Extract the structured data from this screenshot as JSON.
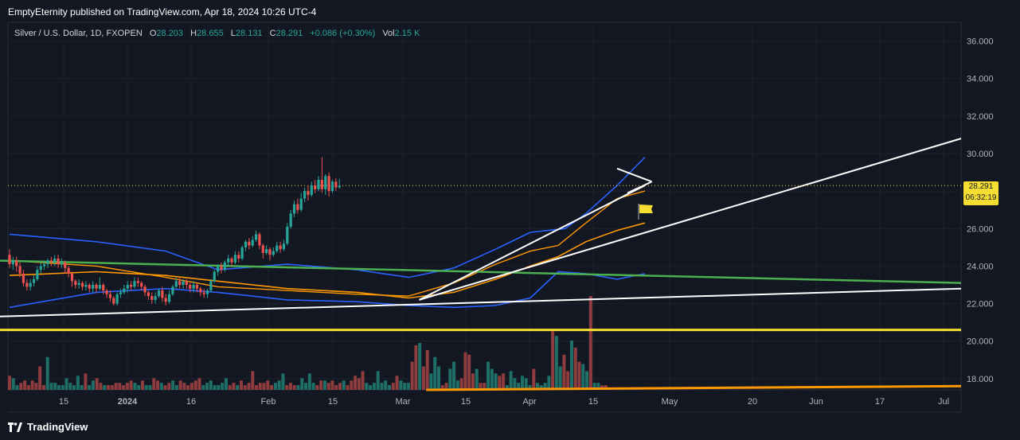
{
  "header": {
    "publisher": "EmptyEternity published on TradingView.com, Apr 18, 2024 10:26 UTC-4"
  },
  "legend": {
    "symbol": "Silver / U.S. Dollar, 1D, FXOPEN",
    "open_label": "O",
    "open": "28.203",
    "high_label": "H",
    "high": "28.655",
    "low_label": "L",
    "low": "28.131",
    "close_label": "C",
    "close": "28.291",
    "change": "+0.086 (+0.30%)",
    "vol_label": "Vol",
    "vol": "2.15 K"
  },
  "price_badge": {
    "price": "28.291",
    "countdown": "06:32:19"
  },
  "footer": {
    "brand": "TradingView"
  },
  "colors": {
    "background": "#131722",
    "up": "#26a69a",
    "down": "#ef5350",
    "up_volume": "#1e6f67",
    "down_volume": "#8e3c3e",
    "bb": "#2962ff",
    "ema": "#ff9800",
    "green_trend": "#4caf50",
    "yellow_support": "#f5dd32",
    "white_line": "#ffffff"
  },
  "chart_data": {
    "type": "candlestick",
    "y_axis": {
      "ticks": [
        "36.000",
        "34.000",
        "32.000",
        "30.000",
        "28.000",
        "26.000",
        "24.000",
        "22.000",
        "20.000",
        "18.000"
      ],
      "range": [
        17.4,
        37.0
      ]
    },
    "x_axis": {
      "tick_labels": [
        "15",
        "2024",
        "16",
        "Feb",
        "15",
        "Mar",
        "15",
        "Apr",
        "15",
        "May",
        "20",
        "Jun",
        "17",
        "Jul"
      ]
    },
    "candles": [
      {
        "o": 24.6,
        "c": 24.1,
        "h": 24.9,
        "l": 23.9
      },
      {
        "o": 24.1,
        "c": 24.3,
        "h": 24.5,
        "l": 23.8
      },
      {
        "o": 24.3,
        "c": 24.0,
        "h": 24.5,
        "l": 23.7
      },
      {
        "o": 24.0,
        "c": 23.6,
        "h": 24.2,
        "l": 23.4
      },
      {
        "o": 23.6,
        "c": 23.1,
        "h": 23.8,
        "l": 22.9
      },
      {
        "o": 23.1,
        "c": 22.9,
        "h": 23.3,
        "l": 22.7
      },
      {
        "o": 22.9,
        "c": 23.1,
        "h": 23.3,
        "l": 22.7
      },
      {
        "o": 23.1,
        "c": 23.3,
        "h": 23.5,
        "l": 22.9
      },
      {
        "o": 23.3,
        "c": 23.8,
        "h": 24.0,
        "l": 23.2
      },
      {
        "o": 23.8,
        "c": 24.0,
        "h": 24.2,
        "l": 23.6
      },
      {
        "o": 24.0,
        "c": 24.1,
        "h": 24.3,
        "l": 23.8
      },
      {
        "o": 24.1,
        "c": 24.3,
        "h": 24.4,
        "l": 23.9
      },
      {
        "o": 24.3,
        "c": 24.2,
        "h": 24.5,
        "l": 24.0
      },
      {
        "o": 24.2,
        "c": 24.4,
        "h": 24.6,
        "l": 24.0
      },
      {
        "o": 24.4,
        "c": 24.1,
        "h": 24.6,
        "l": 23.9
      },
      {
        "o": 24.1,
        "c": 24.2,
        "h": 24.4,
        "l": 23.9
      },
      {
        "o": 24.2,
        "c": 23.9,
        "h": 24.3,
        "l": 23.6
      },
      {
        "o": 23.9,
        "c": 23.6,
        "h": 24.0,
        "l": 23.4
      },
      {
        "o": 23.6,
        "c": 23.2,
        "h": 23.7,
        "l": 22.9
      },
      {
        "o": 23.2,
        "c": 23.0,
        "h": 23.3,
        "l": 22.8
      },
      {
        "o": 23.0,
        "c": 23.1,
        "h": 23.3,
        "l": 22.8
      },
      {
        "o": 23.1,
        "c": 22.9,
        "h": 23.2,
        "l": 22.7
      },
      {
        "o": 22.9,
        "c": 23.0,
        "h": 23.2,
        "l": 22.7
      },
      {
        "o": 23.0,
        "c": 22.8,
        "h": 23.1,
        "l": 22.6
      },
      {
        "o": 22.8,
        "c": 23.0,
        "h": 23.2,
        "l": 22.6
      },
      {
        "o": 23.0,
        "c": 22.8,
        "h": 23.1,
        "l": 22.6
      },
      {
        "o": 22.8,
        "c": 23.0,
        "h": 23.4,
        "l": 22.7
      },
      {
        "o": 23.0,
        "c": 22.7,
        "h": 23.1,
        "l": 22.5
      },
      {
        "o": 22.7,
        "c": 22.5,
        "h": 22.8,
        "l": 22.3
      },
      {
        "o": 22.5,
        "c": 22.3,
        "h": 22.7,
        "l": 22.1
      },
      {
        "o": 22.3,
        "c": 22.0,
        "h": 22.4,
        "l": 21.9
      },
      {
        "o": 22.0,
        "c": 22.5,
        "h": 22.6,
        "l": 21.9
      },
      {
        "o": 22.5,
        "c": 22.6,
        "h": 22.8,
        "l": 22.3
      },
      {
        "o": 22.6,
        "c": 22.8,
        "h": 23.0,
        "l": 22.5
      },
      {
        "o": 22.8,
        "c": 23.0,
        "h": 23.2,
        "l": 22.6
      },
      {
        "o": 23.0,
        "c": 22.9,
        "h": 23.2,
        "l": 22.7
      },
      {
        "o": 22.9,
        "c": 23.2,
        "h": 23.4,
        "l": 22.8
      },
      {
        "o": 23.2,
        "c": 23.1,
        "h": 23.4,
        "l": 22.9
      },
      {
        "o": 23.1,
        "c": 22.9,
        "h": 23.2,
        "l": 22.7
      },
      {
        "o": 22.9,
        "c": 22.6,
        "h": 23.0,
        "l": 22.4
      },
      {
        "o": 22.6,
        "c": 22.4,
        "h": 22.7,
        "l": 22.2
      },
      {
        "o": 22.4,
        "c": 22.2,
        "h": 22.6,
        "l": 22.0
      },
      {
        "o": 22.2,
        "c": 22.4,
        "h": 22.6,
        "l": 22.0
      },
      {
        "o": 22.4,
        "c": 22.7,
        "h": 22.8,
        "l": 22.3
      },
      {
        "o": 22.7,
        "c": 22.3,
        "h": 22.9,
        "l": 22.1
      },
      {
        "o": 22.3,
        "c": 22.1,
        "h": 22.5,
        "l": 21.9
      },
      {
        "o": 22.1,
        "c": 22.5,
        "h": 22.7,
        "l": 22.0
      },
      {
        "o": 22.5,
        "c": 22.9,
        "h": 23.0,
        "l": 22.4
      },
      {
        "o": 22.9,
        "c": 23.2,
        "h": 23.4,
        "l": 22.8
      },
      {
        "o": 23.2,
        "c": 23.0,
        "h": 23.4,
        "l": 22.8
      },
      {
        "o": 23.0,
        "c": 23.2,
        "h": 23.3,
        "l": 22.8
      },
      {
        "o": 23.2,
        "c": 23.0,
        "h": 23.3,
        "l": 22.8
      },
      {
        "o": 23.0,
        "c": 22.8,
        "h": 23.1,
        "l": 22.6
      },
      {
        "o": 22.8,
        "c": 23.0,
        "h": 23.2,
        "l": 22.6
      },
      {
        "o": 23.0,
        "c": 22.8,
        "h": 23.1,
        "l": 22.6
      },
      {
        "o": 22.8,
        "c": 22.6,
        "h": 22.9,
        "l": 22.4
      },
      {
        "o": 22.6,
        "c": 22.5,
        "h": 22.8,
        "l": 22.3
      },
      {
        "o": 22.5,
        "c": 22.7,
        "h": 22.8,
        "l": 22.3
      },
      {
        "o": 22.7,
        "c": 23.2,
        "h": 23.3,
        "l": 22.6
      },
      {
        "o": 23.2,
        "c": 23.7,
        "h": 23.8,
        "l": 23.1
      },
      {
        "o": 23.7,
        "c": 24.0,
        "h": 24.1,
        "l": 23.5
      },
      {
        "o": 24.0,
        "c": 23.8,
        "h": 24.2,
        "l": 23.6
      },
      {
        "o": 23.8,
        "c": 24.2,
        "h": 24.3,
        "l": 23.7
      },
      {
        "o": 24.2,
        "c": 24.4,
        "h": 24.6,
        "l": 24.0
      },
      {
        "o": 24.4,
        "c": 24.2,
        "h": 24.5,
        "l": 24.0
      },
      {
        "o": 24.2,
        "c": 24.6,
        "h": 24.8,
        "l": 24.1
      },
      {
        "o": 24.6,
        "c": 24.4,
        "h": 24.8,
        "l": 24.2
      },
      {
        "o": 24.4,
        "c": 25.0,
        "h": 25.1,
        "l": 24.3
      },
      {
        "o": 25.0,
        "c": 25.3,
        "h": 25.4,
        "l": 24.8
      },
      {
        "o": 25.3,
        "c": 25.1,
        "h": 25.5,
        "l": 24.9
      },
      {
        "o": 25.1,
        "c": 25.4,
        "h": 25.6,
        "l": 25.0
      },
      {
        "o": 25.4,
        "c": 25.7,
        "h": 25.9,
        "l": 25.3
      },
      {
        "o": 25.7,
        "c": 25.1,
        "h": 25.8,
        "l": 24.9
      },
      {
        "o": 25.1,
        "c": 24.7,
        "h": 25.2,
        "l": 24.4
      },
      {
        "o": 24.7,
        "c": 24.9,
        "h": 25.1,
        "l": 24.6
      },
      {
        "o": 24.9,
        "c": 24.6,
        "h": 25.0,
        "l": 24.3
      },
      {
        "o": 24.6,
        "c": 24.8,
        "h": 25.0,
        "l": 24.5
      },
      {
        "o": 24.8,
        "c": 25.1,
        "h": 25.3,
        "l": 24.7
      },
      {
        "o": 25.1,
        "c": 24.9,
        "h": 25.3,
        "l": 24.7
      },
      {
        "o": 24.9,
        "c": 25.2,
        "h": 25.4,
        "l": 24.8
      },
      {
        "o": 25.2,
        "c": 26.1,
        "h": 26.3,
        "l": 25.1
      },
      {
        "o": 26.1,
        "c": 26.8,
        "h": 27.0,
        "l": 26.0
      },
      {
        "o": 26.8,
        "c": 27.3,
        "h": 27.5,
        "l": 26.6
      },
      {
        "o": 27.3,
        "c": 27.0,
        "h": 27.6,
        "l": 26.8
      },
      {
        "o": 27.0,
        "c": 27.6,
        "h": 27.9,
        "l": 26.9
      },
      {
        "o": 27.6,
        "c": 28.0,
        "h": 28.2,
        "l": 27.4
      },
      {
        "o": 28.0,
        "c": 27.8,
        "h": 28.3,
        "l": 27.5
      },
      {
        "o": 27.8,
        "c": 28.3,
        "h": 28.5,
        "l": 27.7
      },
      {
        "o": 28.3,
        "c": 28.1,
        "h": 28.6,
        "l": 27.9
      },
      {
        "o": 28.1,
        "c": 28.6,
        "h": 28.8,
        "l": 28.0
      },
      {
        "o": 28.6,
        "c": 28.1,
        "h": 29.8,
        "l": 27.9
      },
      {
        "o": 28.1,
        "c": 28.8,
        "h": 28.9,
        "l": 27.8
      },
      {
        "o": 28.8,
        "c": 28.0,
        "h": 29.0,
        "l": 27.7
      },
      {
        "o": 28.0,
        "c": 28.5,
        "h": 28.6,
        "l": 27.9
      },
      {
        "o": 28.5,
        "c": 28.2,
        "h": 28.7,
        "l": 28.0
      },
      {
        "o": 28.203,
        "c": 28.291,
        "h": 28.655,
        "l": 28.131
      }
    ],
    "volumes": [
      6,
      5,
      2,
      3,
      4,
      2,
      4,
      3,
      10,
      2,
      14,
      3,
      3,
      2,
      2,
      5,
      3,
      2,
      6,
      2,
      7,
      2,
      4,
      5,
      3,
      2,
      2,
      2,
      3,
      3,
      2,
      3,
      4,
      3,
      2,
      4,
      2,
      2,
      5,
      4,
      3,
      2,
      3,
      4,
      2,
      4,
      3,
      2,
      3,
      4,
      5,
      2,
      3,
      4,
      2,
      2,
      3,
      5,
      2,
      3,
      2,
      4,
      2,
      3,
      8,
      2,
      3,
      3,
      4,
      2,
      3,
      4,
      7,
      2,
      3,
      2,
      2,
      5,
      3,
      7,
      3,
      2,
      4,
      4,
      3,
      4,
      2,
      3,
      4,
      2,
      4,
      6,
      5,
      8,
      3,
      2,
      3,
      8,
      3,
      4,
      2,
      3,
      6,
      4,
      3,
      3,
      12,
      19,
      20,
      10,
      17,
      7,
      14,
      10,
      2,
      3,
      9,
      12,
      4,
      5,
      16,
      15,
      7,
      9,
      3,
      3,
      12,
      9,
      7,
      6,
      7,
      2,
      8,
      5,
      3,
      6,
      5,
      2,
      9,
      3,
      2,
      3,
      6,
      25,
      23,
      10,
      15,
      8,
      21,
      18,
      12,
      11,
      8,
      40,
      3,
      3,
      2,
      2,
      1
    ],
    "bands": {
      "bb_upper": [
        [
          0,
          25.7
        ],
        [
          25,
          25.3
        ],
        [
          45,
          24.8
        ],
        [
          60,
          23.8
        ],
        [
          80,
          24.1
        ],
        [
          100,
          23.8
        ],
        [
          115,
          23.4
        ],
        [
          128,
          23.9
        ],
        [
          140,
          24.9
        ],
        [
          150,
          25.8
        ],
        [
          160,
          26.0
        ],
        [
          166,
          26.8
        ],
        [
          175,
          28.3
        ],
        [
          183,
          29.8
        ]
      ],
      "bb_lower": [
        [
          0,
          21.8
        ],
        [
          25,
          22.6
        ],
        [
          45,
          22.8
        ],
        [
          60,
          22.6
        ],
        [
          80,
          22.2
        ],
        [
          100,
          22.1
        ],
        [
          115,
          21.9
        ],
        [
          128,
          21.8
        ],
        [
          140,
          21.9
        ],
        [
          150,
          22.3
        ],
        [
          158,
          23.7
        ],
        [
          166,
          23.6
        ],
        [
          175,
          23.3
        ],
        [
          183,
          23.6
        ]
      ],
      "ema_short": [
        [
          0,
          24.3
        ],
        [
          25,
          24.0
        ],
        [
          45,
          23.4
        ],
        [
          60,
          22.9
        ],
        [
          80,
          22.7
        ],
        [
          100,
          22.5
        ],
        [
          115,
          22.4
        ],
        [
          128,
          23.1
        ],
        [
          140,
          24.1
        ],
        [
          150,
          24.8
        ],
        [
          158,
          25.1
        ],
        [
          166,
          26.3
        ],
        [
          175,
          27.6
        ],
        [
          183,
          28.0
        ]
      ],
      "ema_long": [
        [
          0,
          23.5
        ],
        [
          25,
          23.7
        ],
        [
          45,
          23.5
        ],
        [
          60,
          23.2
        ],
        [
          80,
          22.8
        ],
        [
          100,
          22.6
        ],
        [
          115,
          22.3
        ],
        [
          128,
          22.6
        ],
        [
          140,
          23.3
        ],
        [
          150,
          24.0
        ],
        [
          158,
          24.5
        ],
        [
          166,
          25.3
        ],
        [
          175,
          25.9
        ],
        [
          183,
          26.3
        ]
      ]
    },
    "trendlines": [
      {
        "name": "lower-white",
        "from": [
          -5,
          21.3
        ],
        "to": [
          290,
          22.8
        ],
        "color": "white"
      },
      {
        "name": "green-desc",
        "from": [
          -5,
          24.3
        ],
        "to": [
          290,
          23.1
        ],
        "color": "green"
      },
      {
        "name": "rising-white",
        "from": [
          118,
          22.2
        ],
        "to": [
          290,
          30.8
        ],
        "color": "white"
      },
      {
        "name": "short-support",
        "from": [
          118,
          22.2
        ],
        "to": [
          183,
          28.3
        ],
        "color": "white"
      },
      {
        "name": "triangle-top",
        "from": [
          175,
          29.2
        ],
        "to": [
          185,
          28.5
        ],
        "color": "white"
      },
      {
        "name": "triangle-bottom",
        "from": [
          178,
          27.9
        ],
        "to": [
          185,
          28.5
        ],
        "color": "white"
      },
      {
        "name": "yellow-support",
        "from": [
          -5,
          20.6
        ],
        "to": [
          290,
          20.6
        ],
        "color": "yellow"
      },
      {
        "name": "orange-volume-base",
        "from": [
          120,
          17.4
        ],
        "to": [
          290,
          17.6
        ],
        "color": "orange"
      }
    ],
    "last_price_line": 28.291
  }
}
